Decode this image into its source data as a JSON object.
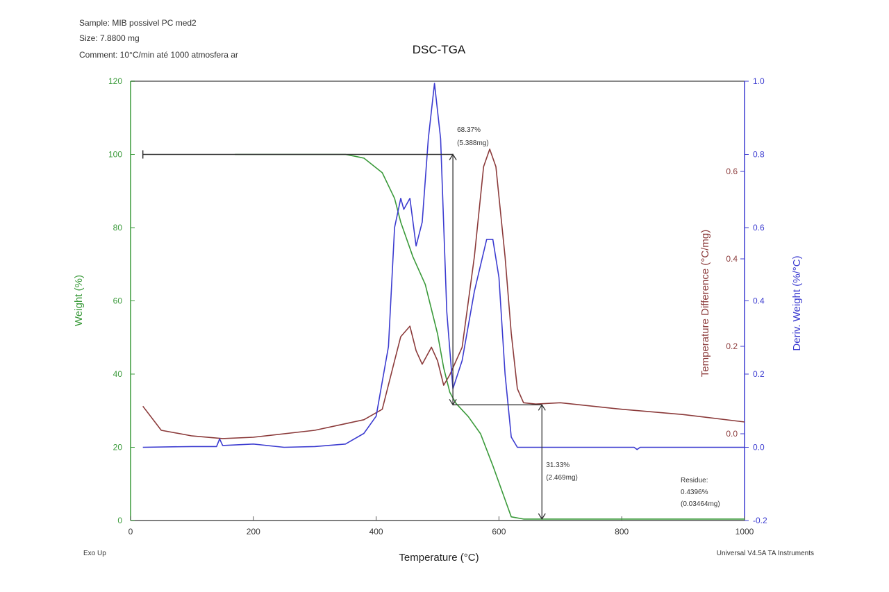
{
  "header": {
    "sample": "Sample: MIB possivel PC med2",
    "size": "Size:  7.8800 mg",
    "comment": "Comment: 10°C/min até 1000 atmosfera ar"
  },
  "footer": {
    "left": "Exo Up",
    "right": "Universal V4.5A TA Instruments"
  },
  "colors": {
    "weight": "#3a9a3a",
    "dsc": "#8b3a3a",
    "dtg": "#3b3bd0",
    "annot": "#333333"
  },
  "chart_data": {
    "type": "line",
    "title": "DSC-TGA",
    "xlabel": "Temperature (°C)",
    "xlim": [
      0,
      1000
    ],
    "xticks": [
      0,
      200,
      400,
      600,
      800,
      1000
    ],
    "axes": {
      "weight": {
        "label": "Weight (%)",
        "lim": [
          0,
          120
        ],
        "ticks": [
          0,
          20,
          40,
          60,
          80,
          100,
          120
        ]
      },
      "dsc": {
        "label": "Temperature Difference (°C/mg)",
        "lim": [
          -0.0,
          0.6
        ],
        "ticks": [
          "0.0",
          "0.2",
          "0.4",
          "0.6"
        ]
      },
      "dtg": {
        "label": "Deriv. Weight (%/°C)",
        "lim": [
          -0.2,
          1.0
        ],
        "ticks": [
          "-0.2",
          "0.0",
          "0.2",
          "0.4",
          "0.6",
          "0.8",
          "1.0"
        ]
      }
    },
    "series": [
      {
        "name": "Weight",
        "axis": "weight",
        "x": [
          170,
          350,
          380,
          410,
          430,
          440,
          460,
          480,
          500,
          510,
          520,
          530,
          550,
          570,
          590,
          610,
          620,
          640,
          1000
        ],
        "y": [
          100,
          100,
          99,
          95,
          88,
          81.5,
          72,
          64.5,
          51,
          41.7,
          35,
          32,
          28.4,
          23.7,
          15,
          5.7,
          1,
          0.4,
          0.4
        ]
      },
      {
        "name": "Temperature Difference",
        "axis": "dsc",
        "x": [
          20,
          50,
          100,
          150,
          200,
          300,
          380,
          410,
          430,
          440,
          455,
          465,
          475,
          490,
          500,
          510,
          520,
          540,
          560,
          575,
          585,
          595,
          610,
          620,
          630,
          640,
          660,
          700,
          800,
          900,
          1000
        ],
        "y": [
          0.063,
          0.008,
          -0.005,
          -0.011,
          -0.008,
          0.008,
          0.032,
          0.056,
          0.167,
          0.222,
          0.246,
          0.19,
          0.159,
          0.198,
          0.167,
          0.111,
          0.135,
          0.198,
          0.405,
          0.611,
          0.651,
          0.611,
          0.405,
          0.23,
          0.103,
          0.071,
          0.068,
          0.071,
          0.056,
          0.044,
          0.027
        ]
      },
      {
        "name": "Deriv. Weight",
        "axis": "dtg",
        "x": [
          20,
          100,
          140,
          145,
          150,
          200,
          250,
          300,
          350,
          380,
          400,
          420,
          430,
          440,
          445,
          455,
          465,
          475,
          485,
          495,
          505,
          515,
          525,
          540,
          560,
          580,
          590,
          600,
          610,
          620,
          630,
          820,
          825,
          830,
          1000
        ],
        "y": [
          0,
          0.002,
          0.002,
          0.023,
          0.005,
          0.009,
          0,
          0.002,
          0.009,
          0.038,
          0.085,
          0.275,
          0.6,
          0.68,
          0.65,
          0.68,
          0.55,
          0.615,
          0.843,
          0.994,
          0.843,
          0.37,
          0.16,
          0.237,
          0.426,
          0.568,
          0.568,
          0.464,
          0.2,
          0.028,
          0,
          0,
          -0.006,
          0,
          0
        ]
      }
    ],
    "annotations": [
      {
        "text1": "68.37%",
        "text2": "(5.388mg)",
        "from_T": 20,
        "at_T": 525,
        "top_weight": 100,
        "bottom_weight": 31.6
      },
      {
        "text1": "31.33%",
        "text2": "(2.469mg)",
        "at_T": 670,
        "top_weight": 31.6,
        "bottom_weight": 0.4
      },
      {
        "text0": "Residue:",
        "text1": "0.4396%",
        "text2": "(0.03464mg)"
      }
    ]
  }
}
